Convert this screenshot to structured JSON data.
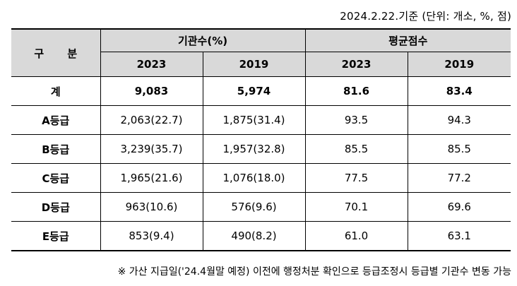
{
  "date_note": "2024.2.22.기준 (단위: 개소, %, 점)",
  "table": {
    "header": {
      "category": "구 분",
      "group1": "기관수(%)",
      "group2": "평균점수",
      "years": [
        "2023",
        "2019",
        "2023",
        "2019"
      ]
    },
    "rows": [
      {
        "label": "계",
        "cells": [
          "9,083",
          "5,974",
          "81.6",
          "83.4"
        ]
      },
      {
        "label": "A등급",
        "cells": [
          "2,063(22.7)",
          "1,875(31.4)",
          "93.5",
          "94.3"
        ]
      },
      {
        "label": "B등급",
        "cells": [
          "3,239(35.7)",
          "1,957(32.8)",
          "85.5",
          "85.5"
        ]
      },
      {
        "label": "C등급",
        "cells": [
          "1,965(21.6)",
          "1,076(18.0)",
          "77.5",
          "77.2"
        ]
      },
      {
        "label": "D등급",
        "cells": [
          "963(10.6)",
          "576(9.6)",
          "70.1",
          "69.6"
        ]
      },
      {
        "label": "E등급",
        "cells": [
          "853(9.4)",
          "490(8.2)",
          "61.0",
          "63.1"
        ]
      }
    ]
  },
  "footnote": "※ 가산 지급일('24.4월말 예정) 이전에 행정처분 확인으로 등급조정시 등급별 기관수 변동 가능"
}
